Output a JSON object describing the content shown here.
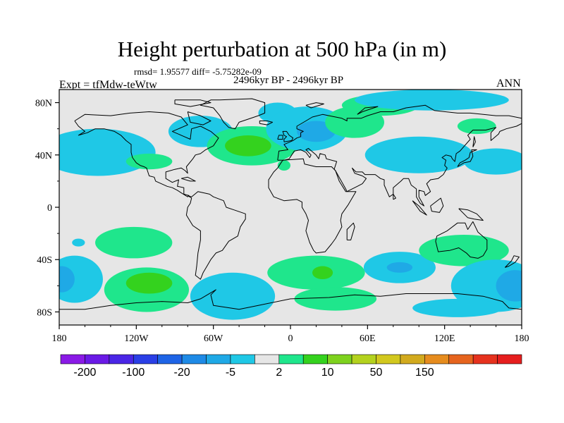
{
  "title": "Height perturbation at 500 hPa (in m)",
  "stats": "rmsd= 1.95577 diff= -5.75282e-09",
  "period": "2496kyr BP - 2496kyr BP",
  "experiment": "Expt = tfMdw-teWtw",
  "season": "ANN",
  "map": {
    "lon_range": [
      -180,
      180
    ],
    "lat_range": [
      -90,
      90
    ],
    "lon_ticks": [
      "180",
      "120W",
      "60W",
      "0",
      "60E",
      "120E",
      "180"
    ],
    "lat_ticks": [
      "80N",
      "40N",
      "0",
      "40S",
      "80S"
    ],
    "ocean_color": "#e6e6e6",
    "coast_color": "#000000"
  },
  "colorbar": {
    "colors": [
      "#8a1ae6",
      "#6a1ae6",
      "#4a26e6",
      "#2a3fe6",
      "#1e64e6",
      "#1e8ae6",
      "#1fa9e6",
      "#1fc8e6",
      "#e6e6e6",
      "#1fe68c",
      "#34d21e",
      "#7ed21e",
      "#b4d21e",
      "#d2c81e",
      "#d2aa1e",
      "#e68c1e",
      "#e6641e",
      "#e6321e",
      "#e61e1e"
    ],
    "labels": [
      "-200",
      "-100",
      "-20",
      "-5",
      "2",
      "10",
      "50",
      "150"
    ]
  },
  "anomalies": [
    {
      "lon": -150,
      "lat": 42,
      "rx": 45,
      "ry": 18,
      "level": "#1fc8e6"
    },
    {
      "lon": -70,
      "lat": 58,
      "rx": 25,
      "ry": 12,
      "level": "#1fc8e6"
    },
    {
      "lon": -30,
      "lat": 47,
      "rx": 35,
      "ry": 15,
      "level": "#1fe68c"
    },
    {
      "lon": -33,
      "lat": 47,
      "rx": 18,
      "ry": 8,
      "level": "#34d21e"
    },
    {
      "lon": -10,
      "lat": 72,
      "rx": 15,
      "ry": 8,
      "level": "#1fc8e6"
    },
    {
      "lon": 13,
      "lat": 60,
      "rx": 32,
      "ry": 17,
      "level": "#1fc8e6"
    },
    {
      "lon": 20,
      "lat": 58,
      "rx": 15,
      "ry": 8,
      "level": "#1fa9e6"
    },
    {
      "lon": 50,
      "lat": 65,
      "rx": 23,
      "ry": 12,
      "level": "#1fe68c"
    },
    {
      "lon": 70,
      "lat": 78,
      "rx": 30,
      "ry": 8,
      "level": "#1fe68c"
    },
    {
      "lon": 100,
      "lat": 40,
      "rx": 42,
      "ry": 14,
      "level": "#1fc8e6"
    },
    {
      "lon": 110,
      "lat": 82,
      "rx": 60,
      "ry": 8,
      "level": "#1fc8e6"
    },
    {
      "lon": 145,
      "lat": 62,
      "rx": 15,
      "ry": 6,
      "level": "#1fe68c"
    },
    {
      "lon": 160,
      "lat": 35,
      "rx": 25,
      "ry": 10,
      "level": "#1fc8e6"
    },
    {
      "lon": -110,
      "lat": 35,
      "rx": 18,
      "ry": 6,
      "level": "#1fe68c"
    },
    {
      "lon": -5,
      "lat": 32,
      "rx": 5,
      "ry": 4,
      "level": "#1fe68c"
    },
    {
      "lon": -122,
      "lat": -27,
      "rx": 30,
      "ry": 12,
      "level": "#1fe68c"
    },
    {
      "lon": -165,
      "lat": -27,
      "rx": 5,
      "ry": 3,
      "level": "#1fc8e6"
    },
    {
      "lon": -168,
      "lat": -55,
      "rx": 22,
      "ry": 18,
      "level": "#1fc8e6"
    },
    {
      "lon": -178,
      "lat": -55,
      "rx": 10,
      "ry": 10,
      "level": "#1fa9e6"
    },
    {
      "lon": -112,
      "lat": -63,
      "rx": 33,
      "ry": 17,
      "level": "#1fe68c"
    },
    {
      "lon": -110,
      "lat": -58,
      "rx": 18,
      "ry": 8,
      "level": "#34d21e"
    },
    {
      "lon": -45,
      "lat": -68,
      "rx": 33,
      "ry": 18,
      "level": "#1fc8e6"
    },
    {
      "lon": 20,
      "lat": -50,
      "rx": 38,
      "ry": 13,
      "level": "#1fe68c"
    },
    {
      "lon": 25,
      "lat": -50,
      "rx": 8,
      "ry": 5,
      "level": "#34d21e"
    },
    {
      "lon": 35,
      "lat": -70,
      "rx": 32,
      "ry": 9,
      "level": "#1fe68c"
    },
    {
      "lon": 85,
      "lat": -46,
      "rx": 28,
      "ry": 12,
      "level": "#1fc8e6"
    },
    {
      "lon": 85,
      "lat": -46,
      "rx": 10,
      "ry": 4,
      "level": "#1fa9e6"
    },
    {
      "lon": 135,
      "lat": -33,
      "rx": 35,
      "ry": 12,
      "level": "#1fe68c"
    },
    {
      "lon": 160,
      "lat": -60,
      "rx": 35,
      "ry": 20,
      "level": "#1fc8e6"
    },
    {
      "lon": 175,
      "lat": -60,
      "rx": 15,
      "ry": 12,
      "level": "#1fa9e6"
    },
    {
      "lon": 130,
      "lat": -77,
      "rx": 35,
      "ry": 7,
      "level": "#1fc8e6"
    }
  ]
}
